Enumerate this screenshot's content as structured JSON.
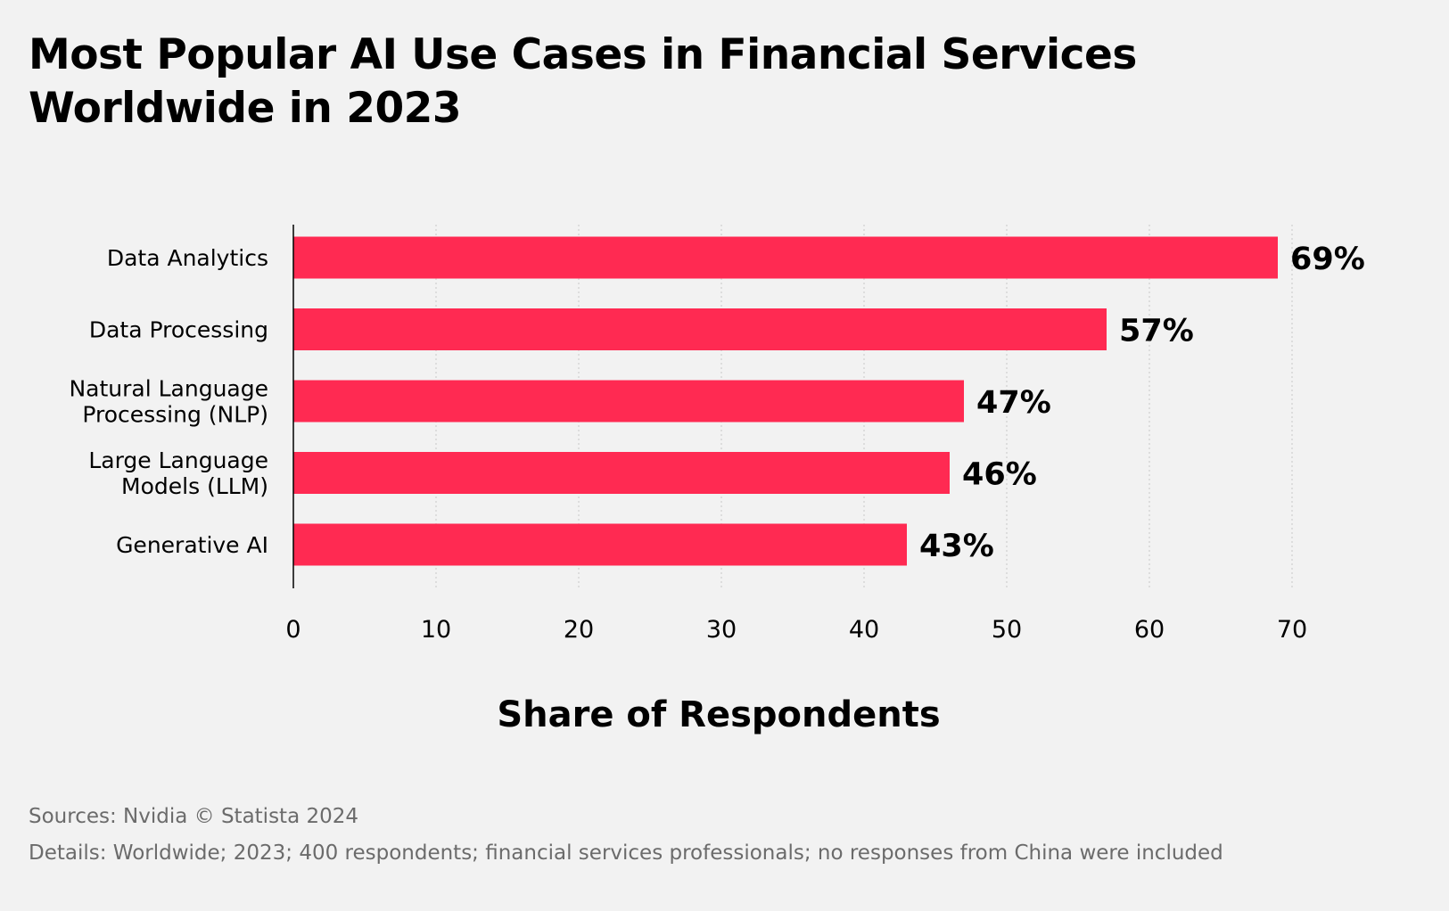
{
  "title": {
    "line1": "Most Popular AI Use Cases in Financial Services",
    "line2": "Worldwide in 2023"
  },
  "colors": {
    "bar": "#ff2a52",
    "background": "#f2f2f2",
    "text": "#000000",
    "footer_text": "#6b6b6b",
    "grid": "#c8c8c8"
  },
  "chart_data": {
    "type": "bar",
    "orientation": "horizontal",
    "categories": [
      [
        "Data Analytics"
      ],
      [
        "Data Processing"
      ],
      [
        "Natural Language",
        "Processing (NLP)"
      ],
      [
        "Large Language",
        "Models (LLM)"
      ],
      [
        "Generative AI"
      ]
    ],
    "values": [
      69,
      57,
      47,
      46,
      43
    ],
    "data_labels": [
      "69%",
      "57%",
      "47%",
      "46%",
      "43%"
    ],
    "xlabel": "Share of Respondents",
    "xlim": [
      0,
      70
    ],
    "xticks": [
      0,
      10,
      20,
      30,
      40,
      50,
      60,
      70
    ],
    "grid": "vertical dotted",
    "legend": "none"
  },
  "footer": {
    "sources": "Sources: Nvidia © Statista 2024",
    "details": "Details: Worldwide; 2023; 400 respondents; financial services professionals; no responses from China were included"
  }
}
